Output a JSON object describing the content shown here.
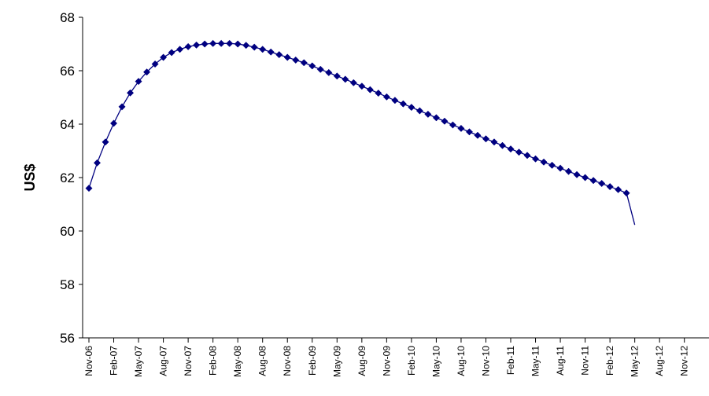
{
  "chart_data": {
    "type": "line",
    "title": "",
    "xlabel": "",
    "ylabel": "US$",
    "ylim": [
      56,
      68
    ],
    "y_ticks": [
      56,
      58,
      60,
      62,
      64,
      66,
      68
    ],
    "x_tick_labels": [
      "Nov-06",
      "Feb-07",
      "May-07",
      "Aug-07",
      "Nov-07",
      "Feb-08",
      "May-08",
      "Aug-08",
      "Nov-08",
      "Feb-09",
      "May-09",
      "Aug-09",
      "Nov-09",
      "Feb-10",
      "May-10",
      "Aug-10",
      "Nov-10",
      "Feb-11",
      "May-11",
      "Aug-11",
      "Nov-11",
      "Feb-12",
      "May-12",
      "Aug-12",
      "Nov-12"
    ],
    "x_start": "Nov-06",
    "grid": false,
    "legend": "none",
    "colors": {
      "series": "#000080",
      "axis": "#000000"
    },
    "series": [
      {
        "marker": "diamond",
        "values": [
          61.6,
          62.55,
          63.33,
          64.03,
          64.65,
          65.17,
          65.6,
          65.95,
          66.25,
          66.5,
          66.68,
          66.8,
          66.9,
          66.96,
          67.0,
          67.02,
          67.02,
          67.02,
          67.0,
          66.95,
          66.88,
          66.8,
          66.7,
          66.6,
          66.5,
          66.4,
          66.3,
          66.18,
          66.05,
          65.93,
          65.8,
          65.68,
          65.55,
          65.42,
          65.29,
          65.16,
          65.02,
          64.89,
          64.76,
          64.63,
          64.5,
          64.37,
          64.24,
          64.11,
          63.97,
          63.84,
          63.71,
          63.58,
          63.45,
          63.33,
          63.2,
          63.07,
          62.95,
          62.83,
          62.7,
          62.58,
          62.46,
          62.35,
          62.23,
          62.11,
          62.0,
          61.89,
          61.78,
          61.66,
          61.55,
          61.42
        ]
      },
      {
        "marker": "none",
        "x_index_start": 65,
        "values": [
          61.42,
          60.23
        ]
      }
    ]
  }
}
